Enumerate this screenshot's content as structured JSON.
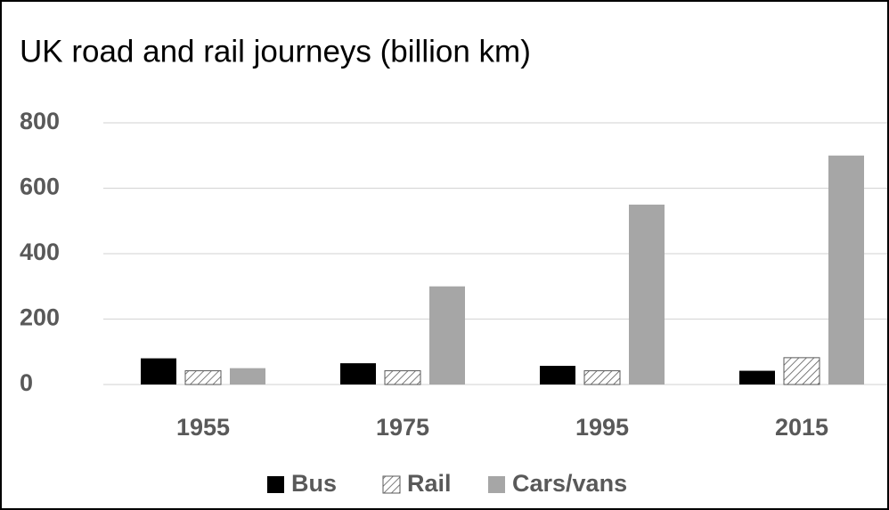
{
  "chart_data": {
    "type": "bar",
    "title": "UK road and rail journeys (billion km)",
    "categories": [
      "1955",
      "1975",
      "1995",
      "2015"
    ],
    "series": [
      {
        "name": "Bus",
        "color": "#000000",
        "values": [
          80,
          65,
          57,
          42
        ]
      },
      {
        "name": "Rail",
        "color": "#595959",
        "pattern": "hatch",
        "values": [
          42,
          42,
          42,
          82
        ]
      },
      {
        "name": "Cars/vans",
        "color": "#a6a6a6",
        "values": [
          50,
          300,
          550,
          700
        ]
      }
    ],
    "ylim": [
      0,
      800
    ],
    "yticks": [
      0,
      200,
      400,
      600,
      800
    ],
    "grid": true,
    "legend": "bottom"
  }
}
